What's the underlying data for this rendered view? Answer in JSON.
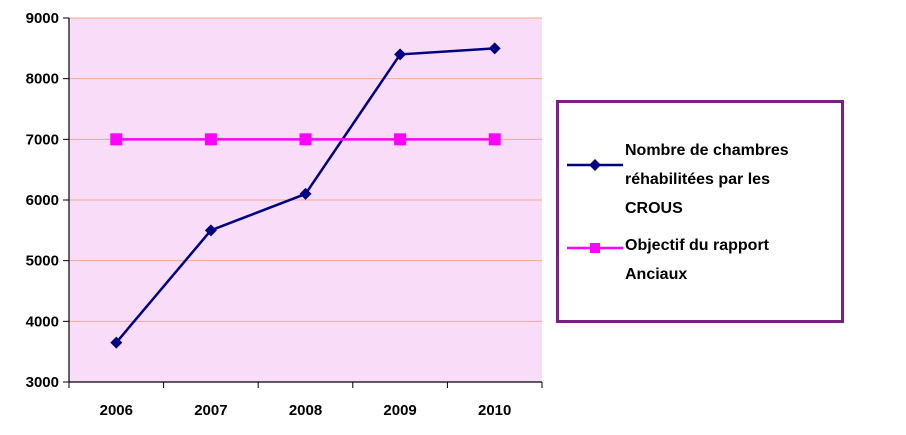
{
  "chart_data": {
    "type": "line",
    "title": "",
    "xlabel": "",
    "ylabel": "",
    "categories": [
      "2006",
      "2007",
      "2008",
      "2009",
      "2010"
    ],
    "ylim": [
      3000,
      9000
    ],
    "yticks": [
      "3000",
      "4000",
      "5000",
      "6000",
      "7000",
      "8000",
      "9000"
    ],
    "grid": true,
    "plot_background": "#f9ddf8",
    "grid_color": "#f2a98c",
    "legend_position": "right",
    "series": [
      {
        "name": "Nombre de chambres réhabilitées par les CROUS",
        "values": [
          3650,
          5500,
          6100,
          8400,
          8500
        ],
        "color": "#000080",
        "marker": "diamond"
      },
      {
        "name": "Objectif du rapport Anciaux",
        "values": [
          7000,
          7000,
          7000,
          7000,
          7000
        ],
        "color": "#ff00ff",
        "marker": "square"
      }
    ]
  },
  "legend": {
    "items": [
      {
        "label": "Nombre de chambres\nréhabilitées par les\nCROUS"
      },
      {
        "label": "Objectif du rapport\nAnciaux"
      }
    ]
  }
}
